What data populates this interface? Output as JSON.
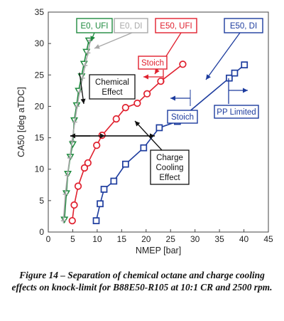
{
  "figure": {
    "caption": "Figure 14 – Separation of chemical octane and charge cooling effects on knock-limit for B88E50-R105 at 10:1 CR and 2500 rpm."
  },
  "chart_data": {
    "type": "scatter",
    "xlabel": "NMEP [bar]",
    "ylabel": "CA50 [deg aTDC]",
    "xlim": [
      0,
      45
    ],
    "ylim": [
      0,
      35
    ],
    "xticks": [
      0,
      5,
      10,
      15,
      20,
      25,
      30,
      35,
      40,
      45
    ],
    "yticks": [
      0,
      5,
      10,
      15,
      20,
      25,
      30,
      35
    ],
    "grid": false,
    "series": [
      {
        "name": "E0, UFI",
        "color": "#1e8a3e",
        "marker": "triangle-down",
        "x": [
          3.3,
          3.7,
          4.0,
          4.5,
          5.0,
          5.3,
          5.8,
          6.2,
          6.8,
          7.3,
          7.8,
          8.3
        ],
        "y": [
          2.0,
          6.2,
          9.3,
          12.0,
          14.0,
          17.8,
          20.2,
          22.5,
          24.8,
          26.8,
          28.7,
          30.5
        ]
      },
      {
        "name": "E0, DI",
        "color": "#a8a8a8",
        "marker": "plus",
        "x": [
          3.1,
          3.5,
          3.9,
          4.4,
          4.9,
          5.4,
          5.9,
          6.4,
          7.0,
          7.5,
          8.1,
          8.6
        ],
        "y": [
          1.8,
          6.0,
          9.0,
          11.8,
          14.5,
          17.5,
          20.0,
          22.3,
          24.5,
          26.5,
          28.5,
          30.5
        ]
      },
      {
        "name": "E50, UFI",
        "color": "#e0202e",
        "marker": "circle",
        "x": [
          4.9,
          5.3,
          6.1,
          7.4,
          8.1,
          9.9,
          11.0,
          13.9,
          15.8,
          18.2,
          20.2,
          23.0,
          27.5
        ],
        "y": [
          1.8,
          4.3,
          7.3,
          10.2,
          11.0,
          13.8,
          15.4,
          18.0,
          19.8,
          20.5,
          22.0,
          24.0,
          26.7
        ]
      },
      {
        "name": "E50, DI",
        "color": "#1d3c9e",
        "marker": "square",
        "x": [
          9.8,
          10.6,
          11.4,
          13.4,
          15.8,
          19.5,
          22.7,
          26.4,
          37.0,
          38.1,
          40.1
        ],
        "y": [
          1.8,
          4.5,
          6.8,
          8.1,
          10.8,
          13.4,
          16.6,
          17.6,
          24.5,
          25.3,
          26.6
        ]
      }
    ],
    "annotations": {
      "stoich_red": "Stoich",
      "stoich_blue": "Stoich",
      "pp_limited": "PP Limited",
      "chemical_effect": [
        "Chemical",
        "Effect"
      ],
      "charge_cooling": [
        "Charge",
        "Cooling",
        "Effect"
      ]
    }
  },
  "colors": {
    "green": "#1e8a3e",
    "gray": "#a8a8a8",
    "red": "#e0202e",
    "blue": "#1d3c9e",
    "black": "#111111"
  }
}
